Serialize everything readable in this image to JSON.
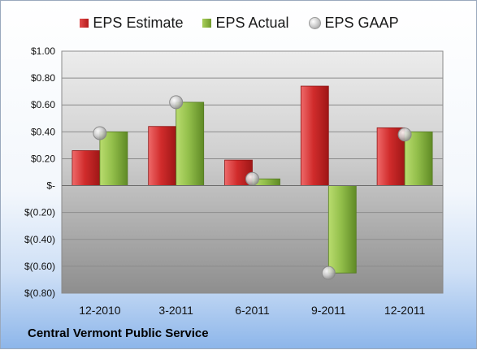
{
  "chart_data": {
    "type": "bar",
    "categories": [
      "12-2010",
      "3-2011",
      "6-2011",
      "9-2011",
      "12-2011"
    ],
    "series": [
      {
        "name": "EPS Estimate",
        "type": "bar",
        "color": "#c62828",
        "values": [
          0.26,
          0.44,
          0.19,
          0.74,
          0.43
        ]
      },
      {
        "name": "EPS Actual",
        "type": "bar",
        "color": "#8bb543",
        "values": [
          0.4,
          0.62,
          0.05,
          -0.65,
          0.4
        ]
      },
      {
        "name": "EPS GAAP",
        "type": "scatter",
        "color": "#bdbdbd",
        "values": [
          0.39,
          0.62,
          0.05,
          -0.65,
          0.38
        ]
      }
    ],
    "ylim": [
      -0.8,
      1.0
    ],
    "yticks": [
      1.0,
      0.8,
      0.6,
      0.4,
      0.2,
      0,
      -0.2,
      -0.4,
      -0.6,
      -0.8
    ],
    "ytick_labels": [
      "$1.00",
      "$0.80",
      "$0.60",
      "$0.40",
      "$0.20",
      "$-",
      "$(0.20)",
      "$(0.40)",
      "$(0.60)",
      "$(0.80)"
    ],
    "grid": true,
    "legend_position": "top"
  },
  "legend": {
    "estimate": "EPS Estimate",
    "actual": "EPS Actual",
    "gaap": "EPS GAAP"
  },
  "company_name": "Central Vermont Public Service"
}
